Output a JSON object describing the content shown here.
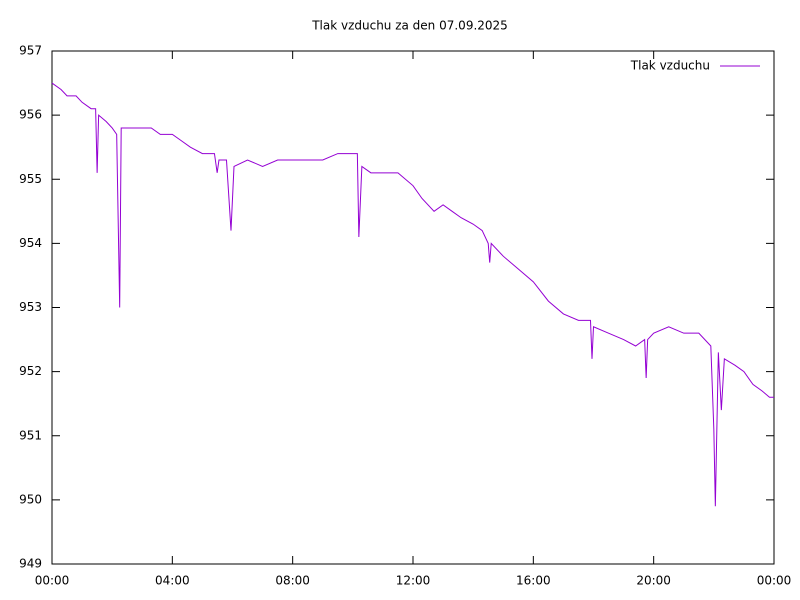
{
  "chart_data": {
    "type": "line",
    "title": "Tlak vzduchu za den 07.09.2025",
    "x": [
      0.0,
      0.3,
      0.5,
      0.8,
      1.0,
      1.3,
      1.45,
      1.5,
      1.55,
      1.8,
      2.0,
      2.15,
      2.25,
      2.3,
      2.6,
      3.0,
      3.3,
      3.6,
      4.0,
      4.3,
      4.6,
      5.0,
      5.4,
      5.49,
      5.55,
      5.8,
      5.95,
      6.05,
      6.5,
      7.0,
      7.5,
      8.0,
      9.0,
      9.5,
      10.0,
      10.15,
      10.2,
      10.3,
      10.6,
      11.0,
      11.5,
      12.0,
      12.3,
      12.7,
      13.0,
      13.3,
      13.6,
      14.0,
      14.3,
      14.5,
      14.55,
      14.6,
      15.0,
      15.5,
      16.0,
      16.5,
      17.0,
      17.5,
      17.9,
      17.95,
      18.0,
      18.5,
      19.0,
      19.4,
      19.7,
      19.75,
      19.8,
      20.0,
      20.5,
      21.0,
      21.5,
      21.9,
      22.0,
      22.05,
      22.15,
      22.25,
      22.35,
      22.7,
      23.0,
      23.3,
      23.6,
      23.85,
      24.0
    ],
    "series": [
      {
        "name": "Tlak vzduchu",
        "color": "#9400d3",
        "values": [
          956.5,
          956.4,
          956.3,
          956.3,
          956.2,
          956.1,
          956.1,
          955.1,
          956.0,
          955.9,
          955.8,
          955.7,
          953.0,
          955.8,
          955.8,
          955.8,
          955.8,
          955.7,
          955.7,
          955.6,
          955.5,
          955.4,
          955.4,
          955.1,
          955.3,
          955.3,
          954.2,
          955.2,
          955.3,
          955.2,
          955.3,
          955.3,
          955.3,
          955.4,
          955.4,
          955.4,
          954.1,
          955.2,
          955.1,
          955.1,
          955.1,
          954.9,
          954.7,
          954.5,
          954.6,
          954.5,
          954.4,
          954.3,
          954.2,
          954.0,
          953.7,
          954.0,
          953.8,
          953.6,
          953.4,
          953.1,
          952.9,
          952.8,
          952.8,
          952.2,
          952.7,
          952.6,
          952.5,
          952.4,
          952.5,
          951.9,
          952.5,
          952.6,
          952.7,
          952.6,
          952.6,
          952.4,
          951.1,
          949.9,
          952.3,
          951.4,
          952.2,
          952.1,
          952.0,
          951.8,
          951.7,
          951.6,
          951.6
        ]
      }
    ],
    "xlim": [
      0,
      24
    ],
    "xticks": [
      {
        "value": 0,
        "label": "00:00"
      },
      {
        "value": 4,
        "label": "04:00"
      },
      {
        "value": 8,
        "label": "08:00"
      },
      {
        "value": 12,
        "label": "12:00"
      },
      {
        "value": 16,
        "label": "16:00"
      },
      {
        "value": 20,
        "label": "20:00"
      },
      {
        "value": 24,
        "label": "00:00"
      }
    ],
    "ylim": [
      949,
      957
    ],
    "yticks": [
      949,
      950,
      951,
      952,
      953,
      954,
      955,
      956,
      957
    ],
    "legend": "top-right"
  }
}
